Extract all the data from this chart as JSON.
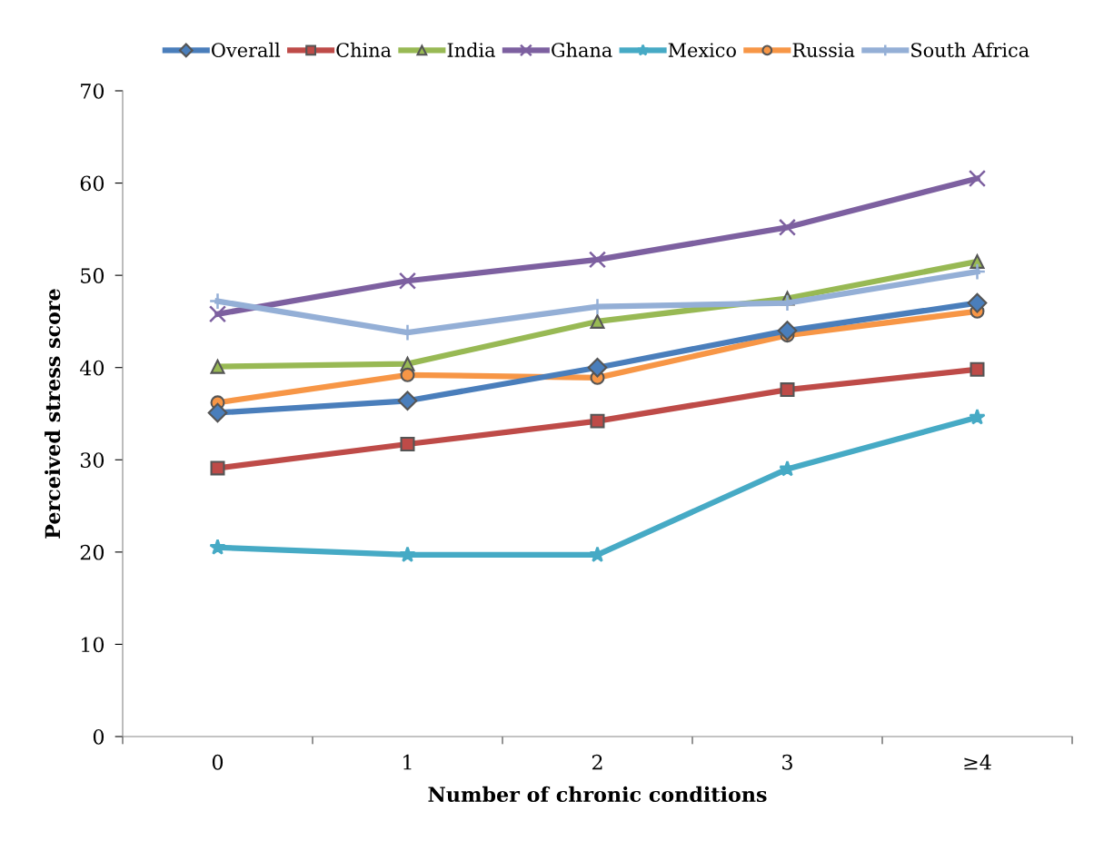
{
  "chart_data": {
    "type": "line",
    "xlabel": "Number of chronic conditions",
    "ylabel": "Perceived stress score",
    "categories": [
      "0",
      "1",
      "2",
      "3",
      "≥4"
    ],
    "ylim": [
      0,
      70
    ],
    "yticks": [
      0,
      10,
      20,
      30,
      40,
      50,
      60,
      70
    ],
    "grid": false,
    "legend": "top",
    "series": [
      {
        "name": "Overall",
        "color": "#4a7ebb",
        "marker": "diamond",
        "values": [
          35.1,
          36.4,
          40.0,
          44.0,
          47.0
        ]
      },
      {
        "name": "China",
        "color": "#be4b48",
        "marker": "square",
        "values": [
          29.1,
          31.7,
          34.2,
          37.6,
          39.8
        ]
      },
      {
        "name": "India",
        "color": "#98b954",
        "marker": "triangle",
        "values": [
          40.1,
          40.4,
          45.0,
          47.5,
          51.5
        ]
      },
      {
        "name": "Ghana",
        "color": "#7d60a0",
        "marker": "cross",
        "values": [
          45.8,
          49.4,
          51.7,
          55.2,
          60.5
        ]
      },
      {
        "name": "Mexico",
        "color": "#46aac5",
        "marker": "star",
        "values": [
          20.5,
          19.7,
          19.7,
          29.0,
          34.6
        ]
      },
      {
        "name": "Russia",
        "color": "#f79646",
        "marker": "circle",
        "values": [
          36.2,
          39.2,
          38.9,
          43.5,
          46.1
        ]
      },
      {
        "name": "South Africa",
        "color": "#94afd6",
        "marker": "plus",
        "values": [
          47.2,
          43.8,
          46.6,
          47.0,
          50.4
        ]
      }
    ]
  }
}
